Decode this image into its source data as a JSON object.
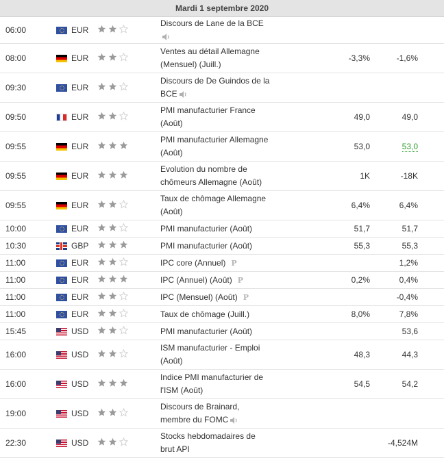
{
  "header": {
    "date": "Mardi 1 septembre 2020"
  },
  "colors": {
    "accent_green": "#2e9e2e",
    "star_filled": "#9a9a9a",
    "star_empty": "#cfcfcf"
  },
  "rows": [
    {
      "time": "06:00",
      "flag": "eu",
      "currency": "EUR",
      "importance": 2,
      "event": "Discours de Lane de la BCE",
      "sound": true,
      "actual": "",
      "forecast": "",
      "previous": ""
    },
    {
      "time": "08:00",
      "flag": "de",
      "currency": "EUR",
      "importance": 2,
      "event": "Ventes au détail Allemagne (Mensuel) (Juill.)",
      "actual": "",
      "forecast": "-3,3%",
      "previous": "-1,6%"
    },
    {
      "time": "09:30",
      "flag": "eu",
      "currency": "EUR",
      "importance": 2,
      "event": "Discours de De Guindos de la BCE",
      "sound": true,
      "actual": "",
      "forecast": "",
      "previous": ""
    },
    {
      "time": "09:50",
      "flag": "fr",
      "currency": "EUR",
      "importance": 2,
      "event": "PMI manufacturier France (Août)",
      "actual": "",
      "forecast": "49,0",
      "previous": "49,0"
    },
    {
      "time": "09:55",
      "flag": "de",
      "currency": "EUR",
      "importance": 3,
      "event": "PMI manufacturier Allemagne (Août)",
      "actual": "",
      "forecast": "53,0",
      "previous": "53,0",
      "previous_green": true
    },
    {
      "time": "09:55",
      "flag": "de",
      "currency": "EUR",
      "importance": 3,
      "event": "Evolution du nombre de chômeurs Allemagne (Août)",
      "actual": "",
      "forecast": "1K",
      "previous": "-18K"
    },
    {
      "time": "09:55",
      "flag": "de",
      "currency": "EUR",
      "importance": 2,
      "event": "Taux de chômage Allemagne (Août)",
      "actual": "",
      "forecast": "6,4%",
      "previous": "6,4%"
    },
    {
      "time": "10:00",
      "flag": "eu",
      "currency": "EUR",
      "importance": 2,
      "event": "PMI manufacturier (Août)",
      "actual": "",
      "forecast": "51,7",
      "previous": "51,7"
    },
    {
      "time": "10:30",
      "flag": "gb",
      "currency": "GBP",
      "importance": 3,
      "event": "PMI manufacturier (Août)",
      "actual": "",
      "forecast": "55,3",
      "previous": "55,3"
    },
    {
      "time": "11:00",
      "flag": "eu",
      "currency": "EUR",
      "importance": 2,
      "event": "IPC core (Annuel)",
      "prelim": "P",
      "actual": "",
      "forecast": "",
      "previous": "1,2%"
    },
    {
      "time": "11:00",
      "flag": "eu",
      "currency": "EUR",
      "importance": 3,
      "event": "IPC (Annuel) (Août)",
      "prelim": "P",
      "actual": "",
      "forecast": "0,2%",
      "previous": "0,4%"
    },
    {
      "time": "11:00",
      "flag": "eu",
      "currency": "EUR",
      "importance": 2,
      "event": "IPC (Mensuel) (Août)",
      "prelim": "P",
      "actual": "",
      "forecast": "",
      "previous": "-0,4%"
    },
    {
      "time": "11:00",
      "flag": "eu",
      "currency": "EUR",
      "importance": 2,
      "event": "Taux de chômage (Juill.)",
      "actual": "",
      "forecast": "8,0%",
      "previous": "7,8%"
    },
    {
      "time": "15:45",
      "flag": "us",
      "currency": "USD",
      "importance": 2,
      "event": "PMI manufacturier (Août)",
      "actual": "",
      "forecast": "",
      "previous": "53,6"
    },
    {
      "time": "16:00",
      "flag": "us",
      "currency": "USD",
      "importance": 2,
      "event": "ISM manufacturier - Emploi (Août)",
      "actual": "",
      "forecast": "48,3",
      "previous": "44,3"
    },
    {
      "time": "16:00",
      "flag": "us",
      "currency": "USD",
      "importance": 3,
      "event": "Indice PMI manufacturier de l'ISM (Août)",
      "actual": "",
      "forecast": "54,5",
      "previous": "54,2"
    },
    {
      "time": "19:00",
      "flag": "us",
      "currency": "USD",
      "importance": 2,
      "event": "Discours de Brainard, membre du FOMC",
      "sound": true,
      "actual": "",
      "forecast": "",
      "previous": ""
    },
    {
      "time": "22:30",
      "flag": "us",
      "currency": "USD",
      "importance": 2,
      "event": "Stocks hebdomadaires de brut API",
      "actual": "",
      "forecast": "",
      "previous": "-4,524M"
    }
  ]
}
